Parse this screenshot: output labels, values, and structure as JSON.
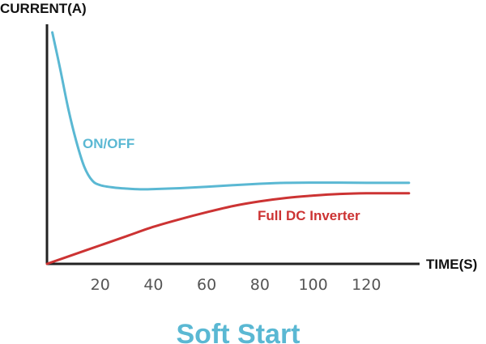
{
  "chart_data": {
    "type": "line",
    "title": "Soft Start",
    "xlabel": "TIME(S)",
    "ylabel": "CURRENT(A)",
    "xlim": [
      0,
      140
    ],
    "ylim": [
      0,
      100
    ],
    "x_ticks": [
      "20",
      "40",
      "60",
      "80",
      "100",
      "120"
    ],
    "grid": false,
    "legend": "none",
    "series": [
      {
        "name": "ON/OFF",
        "color": "#5ab8d3",
        "x": [
          2,
          5,
          8,
          11,
          14,
          17,
          20,
          25,
          30,
          35,
          40,
          50,
          60,
          70,
          80,
          90,
          100,
          110,
          120,
          130,
          136
        ],
        "y": [
          100,
          84,
          67,
          53,
          42,
          36,
          34,
          33,
          32.5,
          32.2,
          32.3,
          32.7,
          33.3,
          34,
          34.6,
          35,
          35.1,
          35.1,
          35,
          35,
          35
        ]
      },
      {
        "name": "Full DC Inverter",
        "color": "#cc3333",
        "x": [
          0,
          10,
          20,
          30,
          40,
          50,
          60,
          70,
          80,
          90,
          100,
          110,
          120,
          130,
          136
        ],
        "y": [
          0,
          4,
          8,
          12,
          16,
          19.3,
          22.3,
          25,
          27,
          28.5,
          29.5,
          30.2,
          30.5,
          30.5,
          30.5
        ]
      }
    ]
  }
}
